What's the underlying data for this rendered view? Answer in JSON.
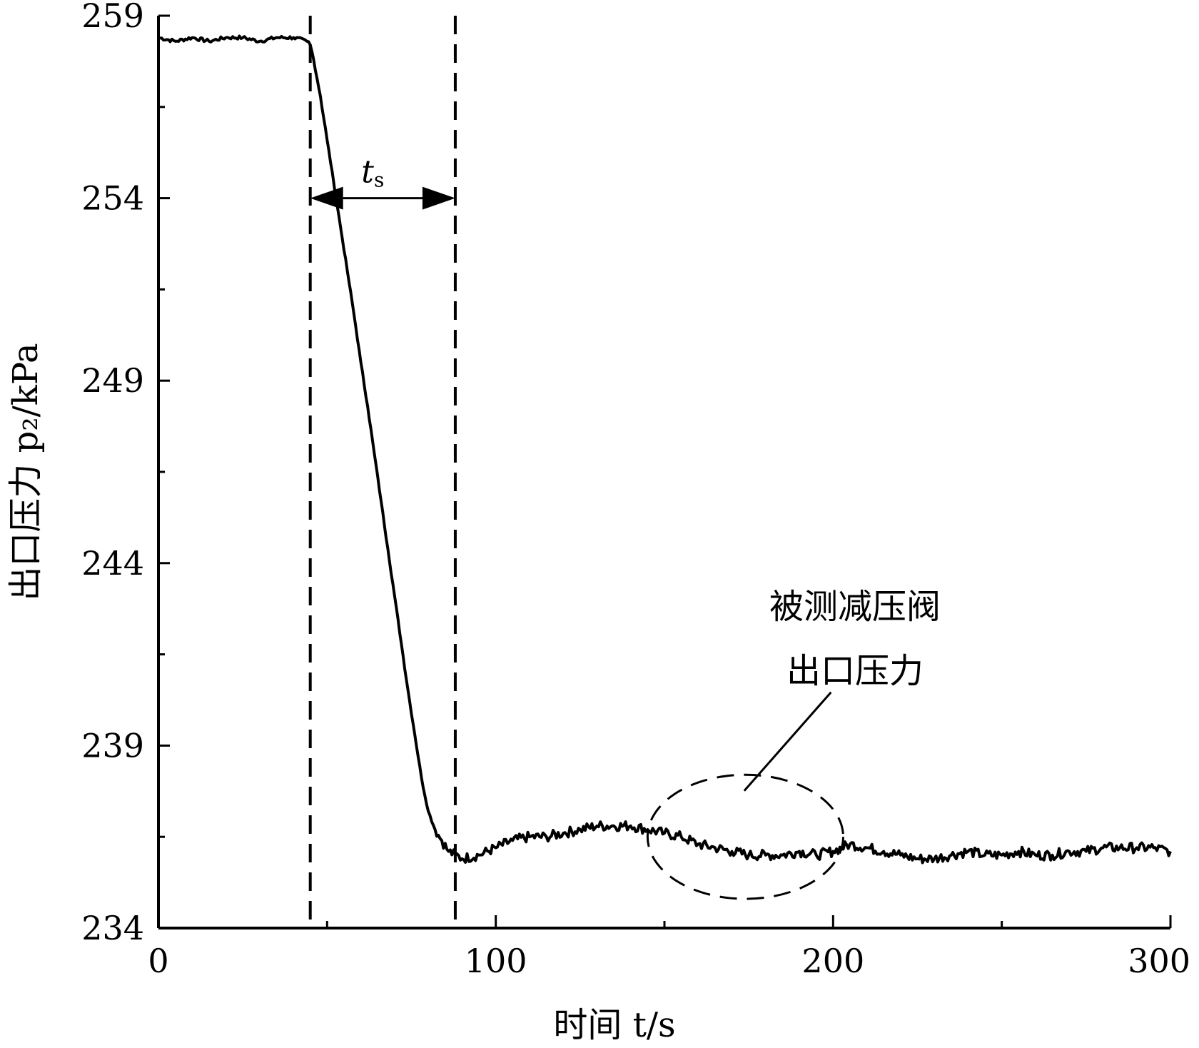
{
  "chart_data": {
    "type": "line",
    "xlabel": "时间 t/s",
    "ylabel": "出口压力 p₂/kPa",
    "xlim": [
      0,
      300
    ],
    "ylim": [
      234,
      259
    ],
    "xticks": [
      0,
      100,
      200,
      300
    ],
    "yticks": [
      234,
      239,
      244,
      249,
      254,
      259
    ],
    "grid": false,
    "series": [
      {
        "color": "#000000",
        "x": [
          0,
          5,
          10,
          15,
          20,
          25,
          30,
          35,
          40,
          44,
          45,
          46,
          48,
          50,
          52,
          54,
          56,
          58,
          60,
          62,
          64,
          66,
          68,
          70,
          72,
          74,
          76,
          78,
          80,
          82,
          84,
          86,
          88,
          90,
          95,
          100,
          105,
          110,
          115,
          120,
          125,
          130,
          135,
          140,
          145,
          150,
          155,
          160,
          165,
          170,
          175,
          180,
          185,
          190,
          195,
          200,
          205,
          210,
          215,
          220,
          225,
          230,
          235,
          240,
          245,
          250,
          255,
          260,
          265,
          270,
          275,
          280,
          285,
          290,
          295,
          300
        ],
        "y": [
          258.4,
          258.3,
          258.4,
          258.3,
          258.4,
          258.4,
          258.3,
          258.4,
          258.4,
          258.3,
          258.2,
          257.8,
          256.8,
          255.6,
          254.4,
          253.2,
          252.0,
          250.8,
          249.5,
          248.3,
          247.0,
          245.7,
          244.4,
          243.1,
          241.8,
          240.5,
          239.3,
          238.1,
          237.2,
          236.7,
          236.4,
          236.1,
          236.0,
          235.9,
          236.0,
          236.2,
          236.4,
          236.5,
          236.5,
          236.6,
          236.7,
          236.8,
          236.8,
          236.8,
          236.7,
          236.6,
          236.5,
          236.3,
          236.2,
          236.1,
          236.0,
          236.0,
          236.0,
          236.1,
          236.0,
          236.1,
          236.3,
          236.2,
          236.1,
          236.0,
          235.9,
          235.9,
          236.0,
          236.1,
          236.0,
          236.0,
          236.1,
          236.0,
          236.0,
          236.1,
          236.1,
          236.2,
          236.2,
          236.2,
          236.2,
          236.1
        ]
      }
    ],
    "markers": [
      {
        "type": "vline",
        "x": 45,
        "style": "dashed"
      },
      {
        "type": "vline",
        "x": 88,
        "style": "dashed"
      }
    ],
    "annotations": [
      {
        "type": "double-arrow",
        "x1": 45,
        "x2": 88,
        "y": 254,
        "label": "t",
        "label_sub": "s"
      },
      {
        "type": "ellipse",
        "cx": 174,
        "cy": 236.5,
        "rx": 29,
        "ry": 1.7,
        "style": "dashed"
      },
      {
        "type": "callout",
        "lines": [
          "被测减压阀",
          "出口压力"
        ],
        "leader_from": [
          200,
          240.5
        ],
        "leader_to": [
          180,
          237.8
        ]
      }
    ]
  }
}
